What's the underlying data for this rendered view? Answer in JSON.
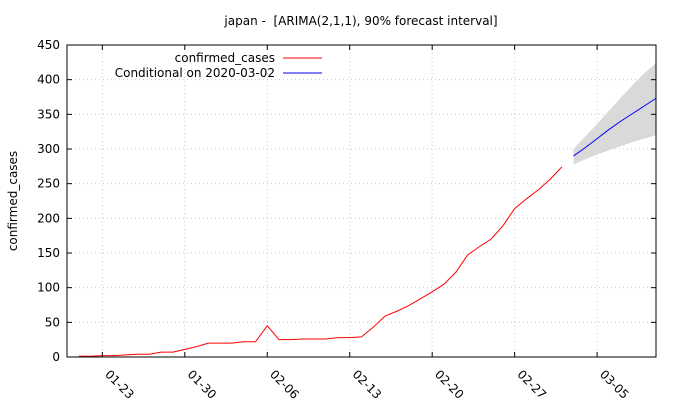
{
  "chart_data": {
    "type": "line",
    "title": "japan -  [ARIMA(2,1,1), 90% forecast interval]",
    "xlabel": "",
    "ylabel": "confirmed_cases",
    "ylim": [
      0,
      450
    ],
    "xlim": [
      "2020-01-20",
      "2020-03-10"
    ],
    "yticks": [
      0,
      50,
      100,
      150,
      200,
      250,
      300,
      350,
      400,
      450
    ],
    "xticks": [
      "01-23",
      "01-30",
      "02-06",
      "02-13",
      "02-20",
      "02-27",
      "03-05"
    ],
    "grid": true,
    "legend_position": "top-left",
    "series": [
      {
        "name": "confirmed_cases",
        "color": "#ff0000",
        "points": [
          [
            "2020-01-21",
            1
          ],
          [
            "2020-01-22",
            1
          ],
          [
            "2020-01-23",
            2
          ],
          [
            "2020-01-24",
            2
          ],
          [
            "2020-01-25",
            3
          ],
          [
            "2020-01-26",
            4
          ],
          [
            "2020-01-27",
            4
          ],
          [
            "2020-01-28",
            7
          ],
          [
            "2020-01-29",
            7
          ],
          [
            "2020-01-30",
            11
          ],
          [
            "2020-01-31",
            15
          ],
          [
            "2020-02-01",
            20
          ],
          [
            "2020-02-02",
            20
          ],
          [
            "2020-02-03",
            20
          ],
          [
            "2020-02-04",
            22
          ],
          [
            "2020-02-05",
            22
          ],
          [
            "2020-02-06",
            45
          ],
          [
            "2020-02-07",
            25
          ],
          [
            "2020-02-08",
            25
          ],
          [
            "2020-02-09",
            26
          ],
          [
            "2020-02-10",
            26
          ],
          [
            "2020-02-11",
            26
          ],
          [
            "2020-02-12",
            28
          ],
          [
            "2020-02-13",
            28
          ],
          [
            "2020-02-14",
            29
          ],
          [
            "2020-02-15",
            43
          ],
          [
            "2020-02-16",
            59
          ],
          [
            "2020-02-17",
            66
          ],
          [
            "2020-02-18",
            74
          ],
          [
            "2020-02-19",
            84
          ],
          [
            "2020-02-20",
            94
          ],
          [
            "2020-02-21",
            105
          ],
          [
            "2020-02-22",
            122
          ],
          [
            "2020-02-23",
            147
          ],
          [
            "2020-02-24",
            159
          ],
          [
            "2020-02-25",
            170
          ],
          [
            "2020-02-26",
            189
          ],
          [
            "2020-02-27",
            214
          ],
          [
            "2020-02-28",
            228
          ],
          [
            "2020-02-29",
            241
          ],
          [
            "2020-03-01",
            256
          ],
          [
            "2020-03-02",
            274
          ]
        ]
      },
      {
        "name": "Conditional on 2020-03-02",
        "color": "#0000ff",
        "points": [
          [
            "2020-03-03",
            290
          ],
          [
            "2020-03-04",
            302
          ],
          [
            "2020-03-05",
            315
          ],
          [
            "2020-03-06",
            328
          ],
          [
            "2020-03-07",
            340
          ],
          [
            "2020-03-08",
            351
          ],
          [
            "2020-03-09",
            362
          ],
          [
            "2020-03-10",
            373
          ]
        ]
      }
    ],
    "forecast_interval": {
      "color": "#d9d9d9",
      "lower": [
        [
          "2020-03-03",
          278
        ],
        [
          "2020-03-04",
          285
        ],
        [
          "2020-03-05",
          292
        ],
        [
          "2020-03-06",
          298
        ],
        [
          "2020-03-07",
          304
        ],
        [
          "2020-03-08",
          310
        ],
        [
          "2020-03-09",
          315
        ],
        [
          "2020-03-10",
          320
        ]
      ],
      "upper": [
        [
          "2020-03-03",
          300
        ],
        [
          "2020-03-04",
          318
        ],
        [
          "2020-03-05",
          336
        ],
        [
          "2020-03-06",
          355
        ],
        [
          "2020-03-07",
          374
        ],
        [
          "2020-03-08",
          392
        ],
        [
          "2020-03-09",
          409
        ],
        [
          "2020-03-10",
          424
        ]
      ]
    }
  }
}
